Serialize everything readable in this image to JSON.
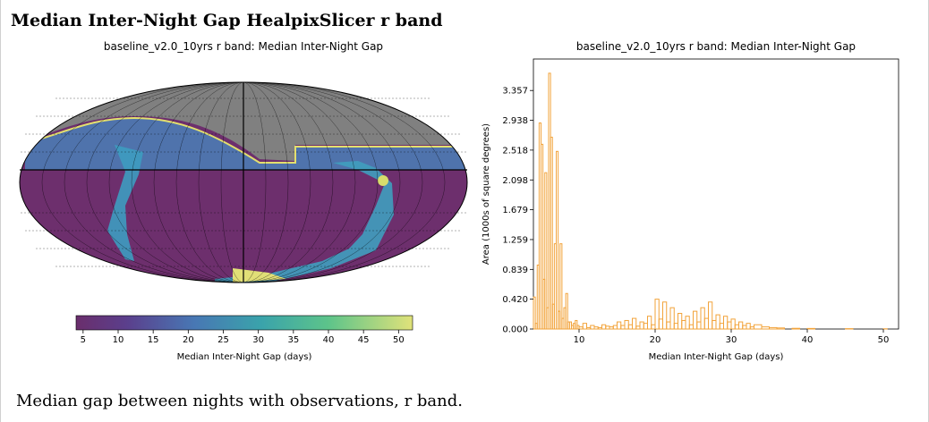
{
  "page": {
    "heading": "Median Inter-Night Gap HealpixSlicer r band",
    "caption": "Median gap between nights with observations, r band."
  },
  "chart_data": [
    {
      "type": "heatmap",
      "projection": "mollweide",
      "title": "baseline_v2.0_10yrs r band: Median Inter-Night Gap",
      "colorbar": {
        "label": "Median Inter-Night Gap (days)",
        "range": [
          4,
          52
        ],
        "ticks": [
          5,
          10,
          15,
          20,
          25,
          30,
          35,
          40,
          45,
          50
        ],
        "colormap": "viridis",
        "alpha": 0.7
      },
      "colors": {
        "no_data": "#808080",
        "low": "#6d2f6d",
        "mid": "#4aa0c0",
        "high": "#e8e070"
      },
      "grid": true
    },
    {
      "type": "histogram",
      "title": "baseline_v2.0_10yrs r band: Median Inter-Night Gap",
      "xlabel": "Median Inter-Night Gap (days)",
      "ylabel": "Area (1000s of square degrees)",
      "xlim": [
        4,
        52
      ],
      "ylim": [
        0,
        3.8
      ],
      "xticks": [
        10,
        20,
        30,
        40,
        50
      ],
      "yticks": [
        "0.000",
        "0.420",
        "0.839",
        "1.259",
        "1.679",
        "2.098",
        "2.518",
        "2.938",
        "3.357"
      ],
      "yticks_values": [
        0,
        0.42,
        0.839,
        1.259,
        1.679,
        2.098,
        2.518,
        2.938,
        3.357
      ],
      "color": "#f2a33a",
      "bins": [
        [
          4.0,
          0.45
        ],
        [
          4.25,
          0.08
        ],
        [
          4.5,
          0.9
        ],
        [
          4.75,
          2.9
        ],
        [
          5.0,
          2.6
        ],
        [
          5.25,
          0.7
        ],
        [
          5.5,
          2.2
        ],
        [
          5.75,
          0.3
        ],
        [
          6.0,
          3.6
        ],
        [
          6.25,
          2.7
        ],
        [
          6.5,
          0.35
        ],
        [
          6.75,
          1.2
        ],
        [
          7.0,
          2.5
        ],
        [
          7.25,
          0.25
        ],
        [
          7.5,
          1.2
        ],
        [
          7.75,
          0.15
        ],
        [
          8.0,
          0.3
        ],
        [
          8.25,
          0.5
        ],
        [
          8.5,
          0.1
        ],
        [
          8.75,
          0.1
        ],
        [
          9.0,
          0.05
        ],
        [
          9.25,
          0.08
        ],
        [
          9.5,
          0.12
        ],
        [
          9.75,
          0.05
        ],
        [
          10.0,
          0.03
        ],
        [
          10.5,
          0.08
        ],
        [
          11.0,
          0.02
        ],
        [
          11.5,
          0.05
        ],
        [
          12.0,
          0.03
        ],
        [
          12.5,
          0.02
        ],
        [
          13.0,
          0.06
        ],
        [
          13.5,
          0.04
        ],
        [
          14.0,
          0.03
        ],
        [
          14.5,
          0.05
        ],
        [
          15.0,
          0.1
        ],
        [
          15.5,
          0.05
        ],
        [
          16.0,
          0.12
        ],
        [
          16.5,
          0.06
        ],
        [
          17.0,
          0.15
        ],
        [
          17.5,
          0.04
        ],
        [
          18.0,
          0.1
        ],
        [
          18.5,
          0.08
        ],
        [
          19.0,
          0.18
        ],
        [
          19.5,
          0.06
        ],
        [
          20.0,
          0.42
        ],
        [
          20.5,
          0.14
        ],
        [
          21.0,
          0.38
        ],
        [
          21.5,
          0.1
        ],
        [
          22.0,
          0.3
        ],
        [
          22.5,
          0.08
        ],
        [
          23.0,
          0.22
        ],
        [
          23.5,
          0.12
        ],
        [
          24.0,
          0.18
        ],
        [
          24.5,
          0.06
        ],
        [
          25.0,
          0.25
        ],
        [
          25.5,
          0.1
        ],
        [
          26.0,
          0.3
        ],
        [
          26.5,
          0.15
        ],
        [
          27.0,
          0.38
        ],
        [
          27.5,
          0.12
        ],
        [
          28.0,
          0.2
        ],
        [
          28.5,
          0.08
        ],
        [
          29.0,
          0.18
        ],
        [
          29.5,
          0.1
        ],
        [
          30.0,
          0.14
        ],
        [
          30.5,
          0.06
        ],
        [
          31.0,
          0.1
        ],
        [
          31.5,
          0.05
        ],
        [
          32.0,
          0.08
        ],
        [
          32.5,
          0.03
        ],
        [
          33.0,
          0.06
        ],
        [
          34.0,
          0.03
        ],
        [
          35.0,
          0.02
        ],
        [
          36.0,
          0.015
        ],
        [
          38.0,
          0.01
        ],
        [
          40.0,
          0.008
        ],
        [
          45.0,
          0.005
        ],
        [
          50.0,
          0.003
        ]
      ]
    }
  ]
}
